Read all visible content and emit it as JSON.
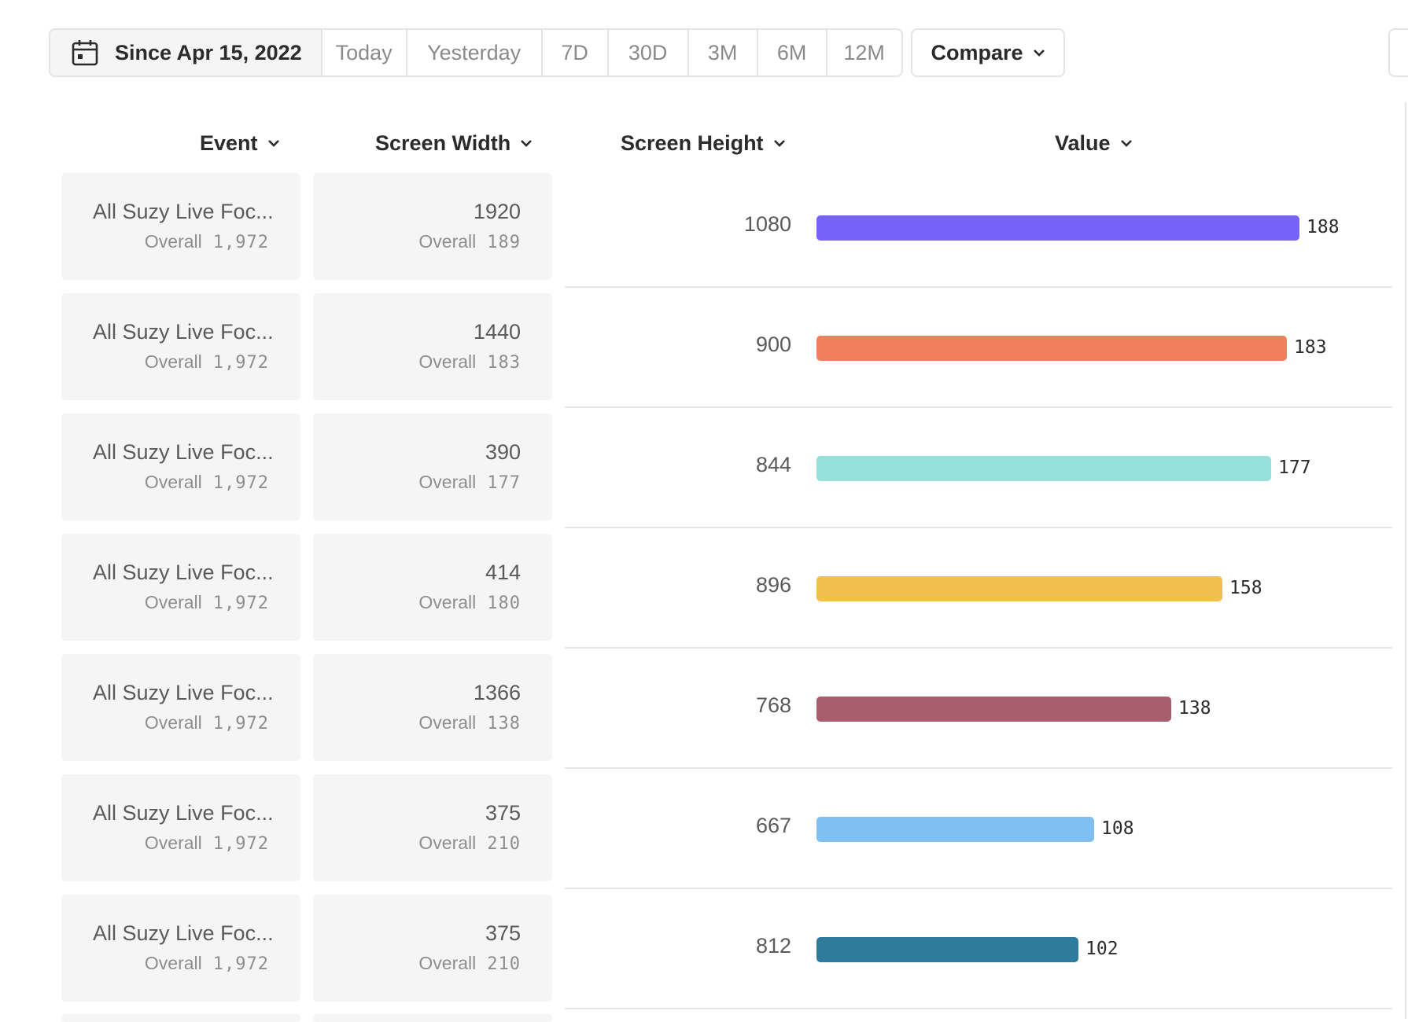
{
  "toolbar": {
    "since_label": "Since Apr 15, 2022",
    "ranges": [
      "Today",
      "Yesterday",
      "7D",
      "30D",
      "3M",
      "6M",
      "12M"
    ],
    "compare_label": "Compare"
  },
  "table": {
    "headers": {
      "event": "Event",
      "screen_width": "Screen Width",
      "screen_height": "Screen Height",
      "value": "Value"
    },
    "overall_label": "Overall",
    "max_value": 188,
    "rows": [
      {
        "event": "All Suzy Live Foc...",
        "event_overall": "1,972",
        "width": "1920",
        "width_overall": "189",
        "height": "1080",
        "value": 188,
        "color": "#7662f9"
      },
      {
        "event": "All Suzy Live Foc...",
        "event_overall": "1,972",
        "width": "1440",
        "width_overall": "183",
        "height": "900",
        "value": 183,
        "color": "#f17e5d"
      },
      {
        "event": "All Suzy Live Foc...",
        "event_overall": "1,972",
        "width": "390",
        "width_overall": "177",
        "height": "844",
        "value": 177,
        "color": "#95e0d9"
      },
      {
        "event": "All Suzy Live Foc...",
        "event_overall": "1,972",
        "width": "414",
        "width_overall": "180",
        "height": "896",
        "value": 158,
        "color": "#f0bf4e"
      },
      {
        "event": "All Suzy Live Foc...",
        "event_overall": "1,972",
        "width": "1366",
        "width_overall": "138",
        "height": "768",
        "value": 138,
        "color": "#a85d6c"
      },
      {
        "event": "All Suzy Live Foc...",
        "event_overall": "1,972",
        "width": "375",
        "width_overall": "210",
        "height": "667",
        "value": 108,
        "color": "#80bff2"
      },
      {
        "event": "All Suzy Live Foc...",
        "event_overall": "1,972",
        "width": "375",
        "width_overall": "210",
        "height": "812",
        "value": 102,
        "color": "#2f7b9c"
      }
    ]
  },
  "icons": {
    "calendar": "calendar-icon",
    "chevron": "chevron-down-icon"
  }
}
